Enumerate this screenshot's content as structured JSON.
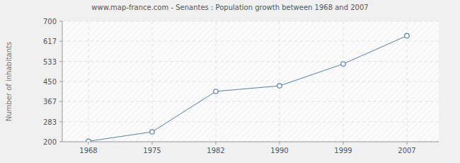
{
  "chart_data": {
    "type": "line",
    "title": "www.map-france.com - Senantes : Population growth between 1968 and 2007",
    "y_label": "Number of inhabitants",
    "categories": [
      "1968",
      "1975",
      "1982",
      "1990",
      "1999",
      "2007"
    ],
    "values": [
      202,
      241,
      409,
      432,
      523,
      640
    ],
    "color": "#5b7fa6",
    "marker": "circle",
    "ylim": [
      200,
      700
    ],
    "yticks": [
      200,
      283,
      367,
      450,
      533,
      617,
      700
    ],
    "grid": true
  }
}
